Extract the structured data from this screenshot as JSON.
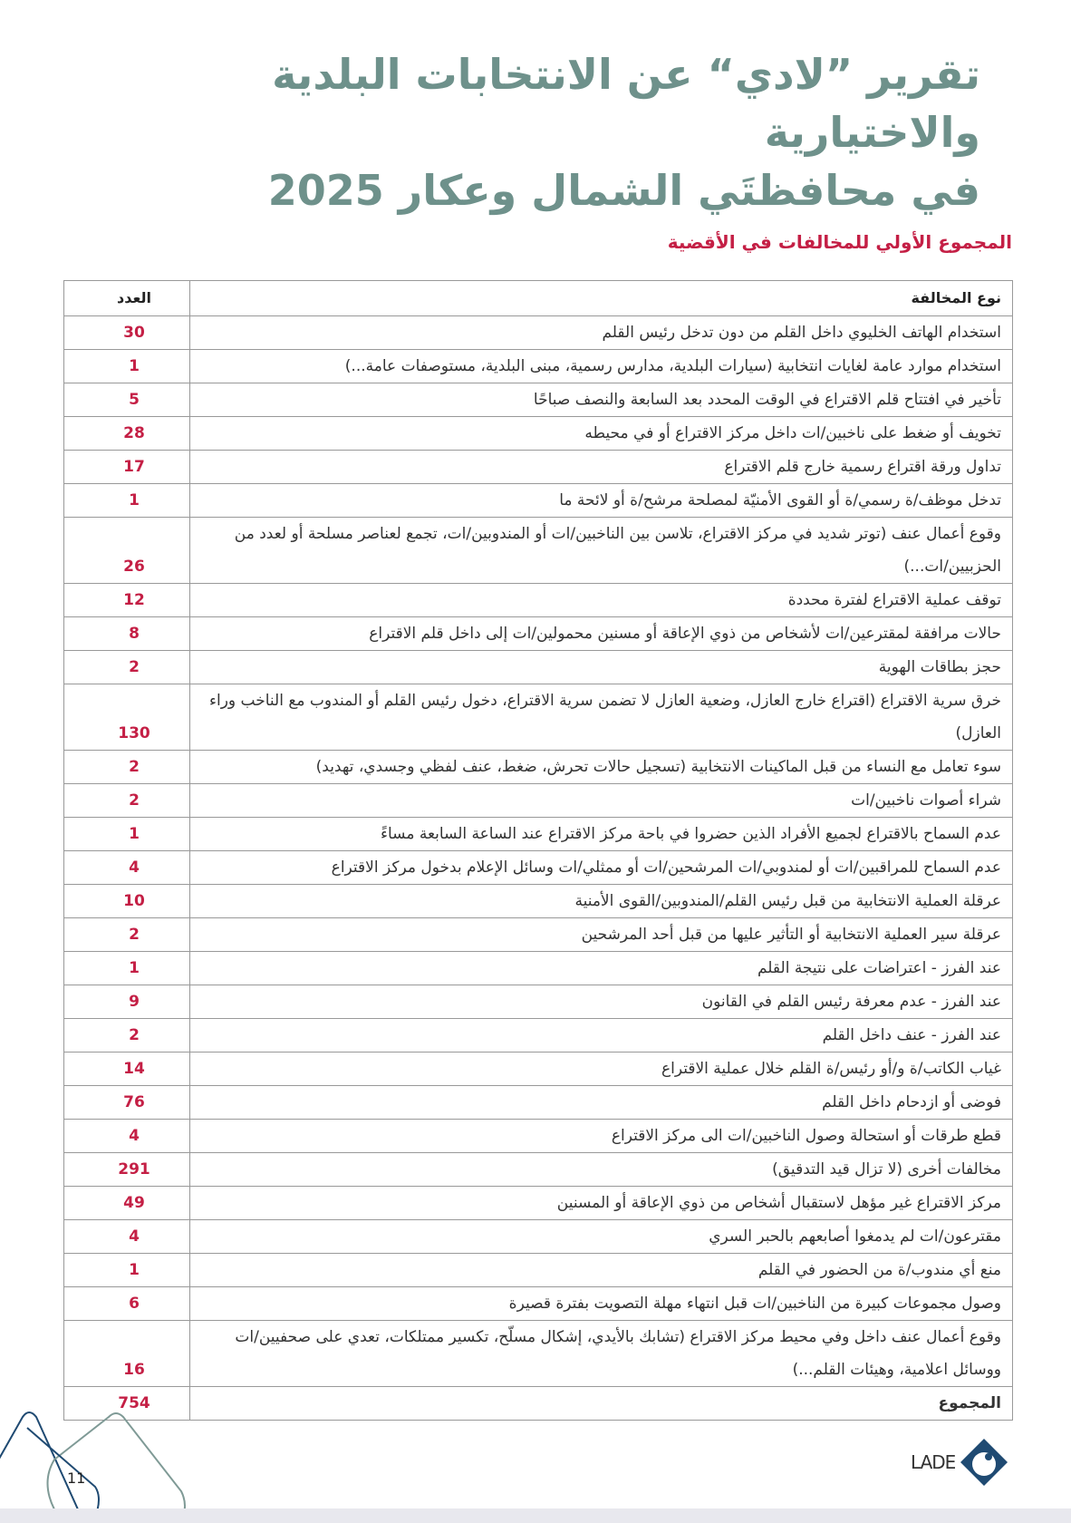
{
  "header": {
    "title_line1": "تقرير ”لادي“ عن الانتخابات البلدية والاختيارية",
    "title_line2": "في محافظتَي الشمال وعكار 2025"
  },
  "section": {
    "subtitle": "المجموع الأولي للمخالفات في الأقضية"
  },
  "table": {
    "headers": {
      "type": "نوع المخالفة",
      "count": "العدد"
    },
    "rows": [
      {
        "type": "استخدام الهاتف الخليوي داخل القلم من دون تدخل رئيس القلم",
        "count": "30"
      },
      {
        "type": "استخدام موارد عامة لغايات انتخابية (سيارات البلدية، مدارس رسمية، مبنى البلدية، مستوصفات عامة...)",
        "count": "1"
      },
      {
        "type": "تأخير في افتتاح قلم الاقتراع في الوقت المحدد بعد السابعة والنصف صباحًا",
        "count": "5"
      },
      {
        "type": "تخويف أو ضغط على ناخبين/ات داخل مركز الاقتراع أو في محيطه",
        "count": "28"
      },
      {
        "type": "تداول ورقة اقتراع رسمية خارج قلم الاقتراع",
        "count": "17"
      },
      {
        "type": "تدخل موظف/ة رسمي/ة أو القوى الأمنيّة لمصلحة مرشح/ة أو لائحة ما",
        "count": "1"
      },
      {
        "type": "وقوع أعمال عنف (توتر شديد في مركز الاقتراع، تلاسن بين الناخبين/ات أو المندوبين/ات، تجمع لعناصر مسلحة أو لعدد من الحزبيين/ات...)",
        "count": "26"
      },
      {
        "type": "توقف عملية الاقتراع لفترة محددة",
        "count": "12"
      },
      {
        "type": "حالات مرافقة لمقترعين/ات لأشخاص من ذوي الإعاقة أو مسنين محمولين/ات إلى داخل قلم الاقتراع",
        "count": "8"
      },
      {
        "type": "حجز بطاقات الهوية",
        "count": "2"
      },
      {
        "type": "خرق سرية الاقتراع (اقتراع خارج العازل، وضعية العازل لا تضمن سرية الاقتراع، دخول رئيس القلم أو المندوب مع الناخب وراء العازل)",
        "count": "130"
      },
      {
        "type": "سوء تعامل مع النساء من قبل الماكينات الانتخابية (تسجيل حالات تحرش، ضغط، عنف لفظي وجسدي، تهديد)",
        "count": "2"
      },
      {
        "type": "شراء أصوات ناخبين/ات",
        "count": "2"
      },
      {
        "type": "عدم السماح بالاقتراع لجميع الأفراد الذين حضروا في باحة مركز الاقتراع عند الساعة السابعة مساءً",
        "count": "1"
      },
      {
        "type": "عدم السماح للمراقبين/ات أو لمندوبي/ات المرشحين/ات أو ممثلي/ات وسائل الإعلام بدخول مركز الاقتراع",
        "count": "4"
      },
      {
        "type": "عرقلة العملية الانتخابية من قبل رئيس القلم/المندوبين/القوى الأمنية",
        "count": "10"
      },
      {
        "type": "عرقلة سير العملية الانتخابية أو التأثير عليها من قبل أحد المرشحين",
        "count": "2"
      },
      {
        "type": "عند الفرز - اعتراضات على نتيجة القلم",
        "count": "1"
      },
      {
        "type": "عند الفرز - عدم معرفة رئيس القلم في القانون",
        "count": "9"
      },
      {
        "type": "عند الفرز - عنف داخل القلم",
        "count": "2"
      },
      {
        "type": "غياب الكاتب/ة و/أو رئيس/ة القلم خلال عملية الاقتراع",
        "count": "14"
      },
      {
        "type": "فوضى أو ازدحام داخل القلم",
        "count": "76"
      },
      {
        "type": "قطع طرقات أو استحالة وصول الناخبين/ات الى مركز الاقتراع",
        "count": "4"
      },
      {
        "type": "مخالفات أخرى (لا تزال قيد التدقيق)",
        "count": "291"
      },
      {
        "type": "مركز الاقتراع غير مؤهل لاستقبال أشخاص من ذوي الإعاقة أو المسنين",
        "count": "49"
      },
      {
        "type": "مقترعون/ات لم يدمغوا أصابعهم بالحبر السري",
        "count": "4"
      },
      {
        "type": "منع أي مندوب/ة من الحضور في القلم",
        "count": "1"
      },
      {
        "type": "وصول مجموعات كبيرة من الناخبين/ات قبل انتهاء مهلة التصويت بفترة قصيرة",
        "count": "6"
      },
      {
        "type": "وقوع أعمال عنف داخل وفي محيط مركز الاقتراع (تشابك بالأيدي، إشكال مسلّح، تكسير ممتلكات، تعدي على صحفيين/ات ووسائل اعلامية، وهيئات القلم...)",
        "count": "16"
      }
    ],
    "total": {
      "label": "المجموع",
      "count": "754"
    }
  },
  "footer": {
    "page_number": "11",
    "logo_text": "LADE"
  },
  "colors": {
    "title": "#6e918b",
    "accent": "#c41f45",
    "logo": "#1f4a72"
  }
}
